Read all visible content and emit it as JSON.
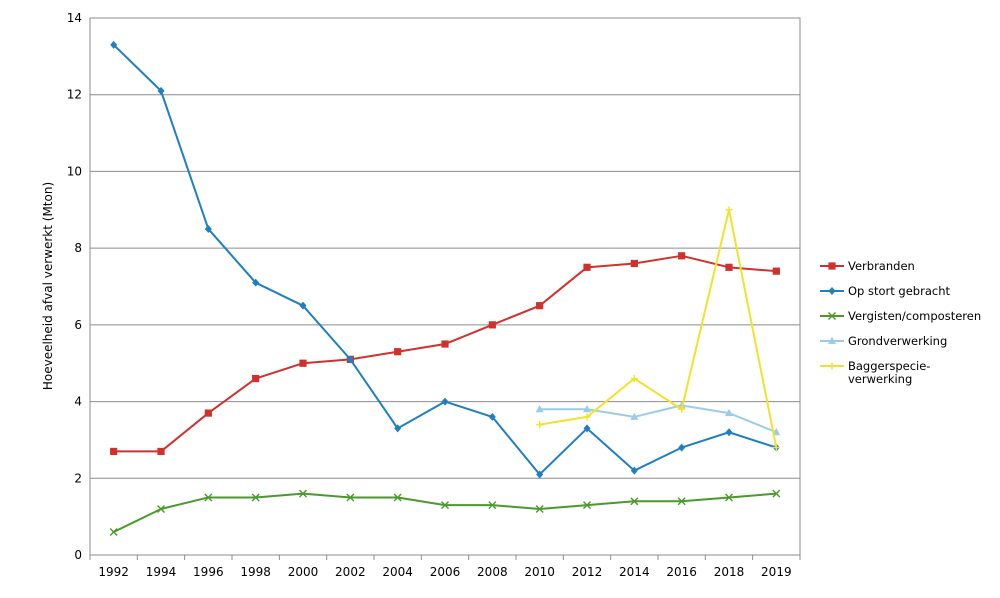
{
  "chart_data": {
    "type": "line",
    "title": "",
    "xlabel": "",
    "ylabel": "Hoeveelheid afval verwerkt (Mton)",
    "ylim": [
      0,
      14
    ],
    "yticks": [
      0,
      2,
      4,
      6,
      8,
      10,
      12,
      14
    ],
    "grid": "horizontal",
    "legend_position": "right",
    "categories": [
      "1992",
      "1994",
      "1996",
      "1998",
      "2000",
      "2002",
      "2004",
      "2006",
      "2008",
      "2010",
      "2012",
      "2014",
      "2016",
      "2018",
      "2019"
    ],
    "series": [
      {
        "name": "Verbranden",
        "color": "#d0312d",
        "marker": "square",
        "values": [
          2.7,
          2.7,
          3.7,
          4.6,
          5.0,
          5.1,
          5.3,
          5.5,
          6.0,
          6.5,
          7.5,
          7.6,
          7.8,
          7.5,
          7.4
        ]
      },
      {
        "name": "Op stort gebracht",
        "color": "#1f7fc2",
        "marker": "diamond",
        "values": [
          13.3,
          12.1,
          8.5,
          7.1,
          6.5,
          5.1,
          3.3,
          4.0,
          3.6,
          2.1,
          3.3,
          2.2,
          2.8,
          3.2,
          2.8
        ]
      },
      {
        "name": "Vergisten/composteren",
        "color": "#4a9a2a",
        "marker": "x",
        "values": [
          0.6,
          1.2,
          1.5,
          1.5,
          1.6,
          1.5,
          1.5,
          1.3,
          1.3,
          1.2,
          1.3,
          1.4,
          1.4,
          1.5,
          1.6
        ]
      },
      {
        "name": "Grondverwerking",
        "color": "#9ccbe8",
        "marker": "triangle",
        "values": [
          null,
          null,
          null,
          null,
          null,
          null,
          null,
          null,
          null,
          3.8,
          3.8,
          3.6,
          3.9,
          3.7,
          3.2
        ]
      },
      {
        "name": "Baggerspecie-\nverwerking",
        "color": "#f2e22b",
        "marker": "plus",
        "values": [
          null,
          null,
          null,
          null,
          null,
          null,
          null,
          null,
          null,
          3.4,
          3.6,
          4.6,
          3.8,
          9.0,
          2.8
        ]
      }
    ]
  }
}
